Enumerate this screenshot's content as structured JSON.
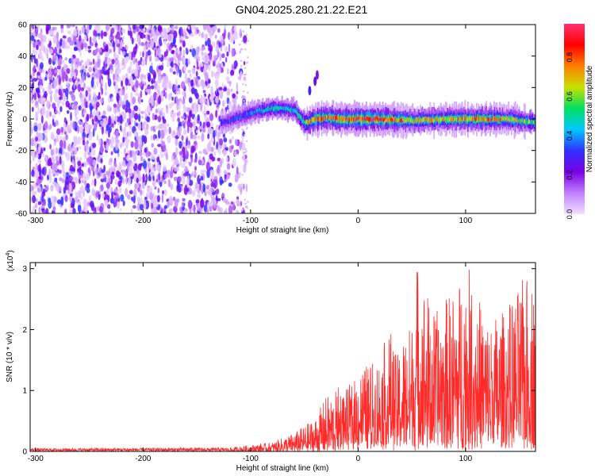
{
  "title": "GN04.2025.280.21.22.E21",
  "chart_data": [
    {
      "type": "heatmap",
      "xlabel": "Height of straight line (km)",
      "ylabel": "Frequency (Hz)",
      "xlim": [
        -305,
        165
      ],
      "ylim": [
        -60,
        60
      ],
      "x_ticks": [
        -300,
        -200,
        -100,
        0,
        100
      ],
      "x_tick_labels": [
        "-300",
        "-200",
        "-100",
        "0",
        "100"
      ],
      "y_ticks": [
        -60,
        -40,
        -20,
        0,
        20,
        40,
        60
      ],
      "y_tick_labels": [
        "-60",
        "-40",
        "-20",
        "0",
        "20",
        "40",
        "60"
      ],
      "noise_region_x": [
        -305,
        -100
      ],
      "ridge": {
        "description": "narrow band of high spectral amplitude near 0 Hz",
        "x": [
          -125,
          -100,
          -80,
          -60,
          -50,
          -40,
          -30,
          -20,
          0,
          20,
          50,
          80,
          100,
          120,
          140,
          160
        ],
        "center_hz": [
          -2,
          4,
          7,
          6,
          -3,
          0,
          1,
          0,
          0,
          0,
          -1,
          0,
          0,
          0,
          0,
          -2
        ],
        "peak_amplitude": [
          0.3,
          0.4,
          0.5,
          0.5,
          0.6,
          0.9,
          0.85,
          0.9,
          0.95,
          0.95,
          0.7,
          0.75,
          0.8,
          0.8,
          0.75,
          0.6
        ]
      },
      "colorbar": {
        "label": "Normalized spectral amplitude",
        "range": [
          0,
          0.97
        ],
        "ticks": [
          0.0,
          0.2,
          0.4,
          0.6,
          0.8
        ],
        "tick_labels": [
          "0.0",
          "0.2",
          "0.4",
          "0.6",
          "0.8"
        ],
        "colors": [
          "#f0e0ff",
          "#c080ff",
          "#7a00e6",
          "#3030ff",
          "#00c8ff",
          "#00e060",
          "#c8e000",
          "#ff8000",
          "#ff0000",
          "#ff3070"
        ]
      }
    },
    {
      "type": "line",
      "xlabel": "Height of straight line (km)",
      "ylabel": "SNR (10 * v/v)",
      "y_multiplier": "(x10",
      "y_multiplier_exp": "4",
      "xlim": [
        -305,
        165
      ],
      "ylim": [
        0,
        3.1
      ],
      "x_ticks": [
        -300,
        -200,
        -100,
        0,
        100
      ],
      "x_tick_labels": [
        "-300",
        "-200",
        "-100",
        "0",
        "100"
      ],
      "y_ticks": [
        0,
        1,
        2,
        3
      ],
      "y_tick_labels": [
        "0",
        "1",
        "2",
        "3"
      ],
      "color": "#ff2a2a",
      "envelope": {
        "x": [
          -305,
          -120,
          -80,
          -60,
          -40,
          -30,
          -20,
          -10,
          0,
          20,
          30,
          35,
          50,
          55,
          70,
          90,
          100,
          120,
          140,
          160,
          165
        ],
        "upper": [
          0.05,
          0.06,
          0.15,
          0.3,
          0.55,
          0.9,
          1.0,
          0.9,
          1.3,
          1.45,
          2.0,
          1.5,
          2.1,
          3.1,
          2.2,
          2.6,
          3.05,
          2.1,
          2.3,
          2.9,
          2.6
        ]
      }
    }
  ]
}
